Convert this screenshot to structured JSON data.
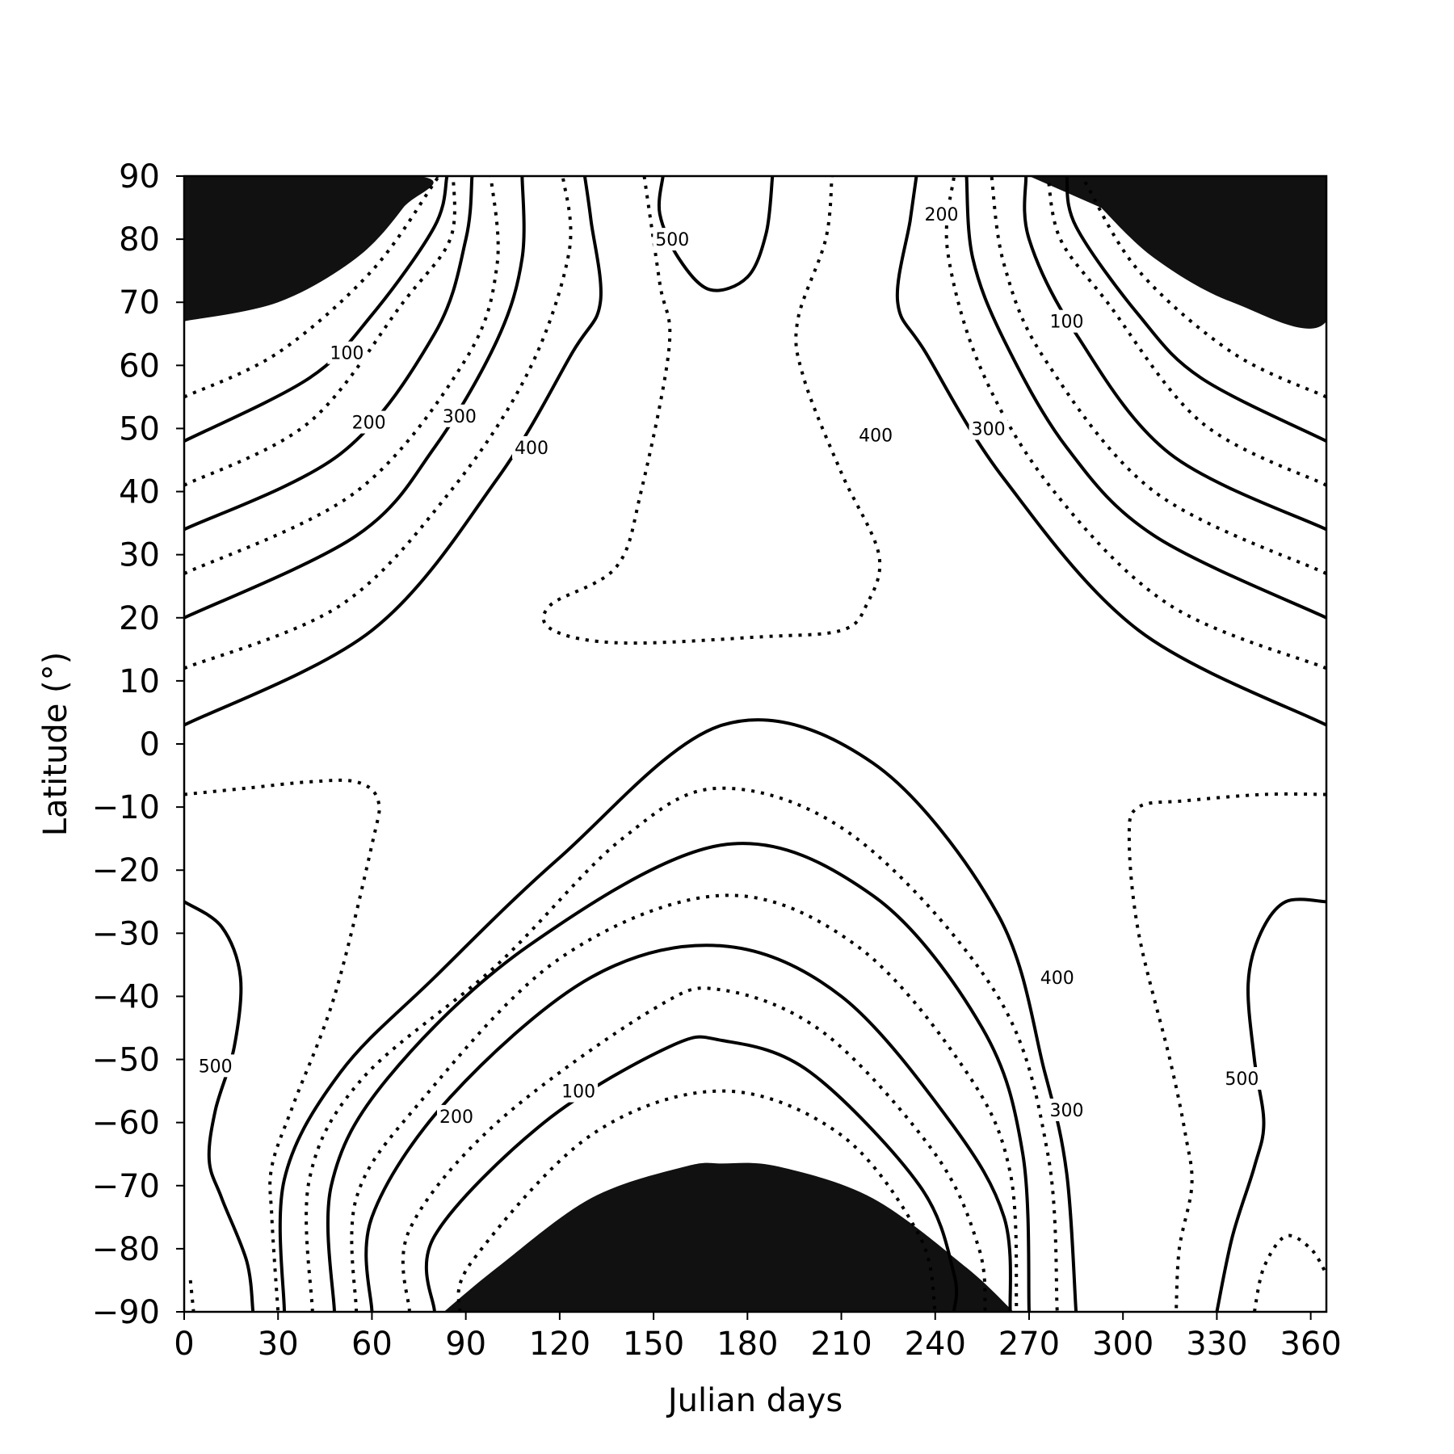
{
  "chart_data": {
    "type": "contour",
    "xlabel": "Julian days",
    "ylabel": "Latitude (°)",
    "xlim": [
      0,
      365
    ],
    "ylim": [
      -90,
      90
    ],
    "x_ticks": [
      "0",
      "30",
      "60",
      "90",
      "120",
      "150",
      "180",
      "210",
      "240",
      "270",
      "300",
      "330",
      "360"
    ],
    "y_ticks": [
      "90",
      "80",
      "70",
      "60",
      "50",
      "40",
      "30",
      "20",
      "10",
      "0",
      "−10",
      "−20",
      "−30",
      "−40",
      "−50",
      "−60",
      "−70",
      "−80",
      "−90"
    ],
    "line_styles": {
      "solid": "multiples of 100",
      "dotted": "intermediate levels (50, 150, 250, 350, 450)"
    },
    "polar_night_fill": "#111111",
    "contour_labels": [
      {
        "text": "100",
        "x": 52,
        "y": 62
      },
      {
        "text": "200",
        "x": 59,
        "y": 51
      },
      {
        "text": "300",
        "x": 88,
        "y": 52
      },
      {
        "text": "400",
        "x": 111,
        "y": 47
      },
      {
        "text": "500",
        "x": 156,
        "y": 80
      },
      {
        "text": "400",
        "x": 221,
        "y": 49
      },
      {
        "text": "300",
        "x": 257,
        "y": 50
      },
      {
        "text": "200",
        "x": 242,
        "y": 84
      },
      {
        "text": "100",
        "x": 282,
        "y": 67
      },
      {
        "text": "500",
        "x": 10,
        "y": -51
      },
      {
        "text": "200",
        "x": 87,
        "y": -59
      },
      {
        "text": "100",
        "x": 126,
        "y": -55
      },
      {
        "text": "400",
        "x": 279,
        "y": -37
      },
      {
        "text": "300",
        "x": 282,
        "y": -58
      },
      {
        "text": "500",
        "x": 338,
        "y": -53
      }
    ],
    "contours": [
      {
        "style": "solid",
        "points": [
          [
            0,
            3
          ],
          [
            60,
            18
          ],
          [
            100,
            42
          ],
          [
            124,
            62
          ],
          [
            133,
            70
          ],
          [
            130,
            83
          ],
          [
            128,
            90
          ]
        ]
      },
      {
        "style": "dotted",
        "points": [
          [
            0,
            12
          ],
          [
            50,
            22
          ],
          [
            85,
            40
          ],
          [
            110,
            59
          ],
          [
            123,
            78
          ],
          [
            121,
            90
          ]
        ]
      },
      {
        "style": "solid",
        "points": [
          [
            0,
            20
          ],
          [
            55,
            33
          ],
          [
            80,
            47
          ],
          [
            100,
            64
          ],
          [
            108,
            77
          ],
          [
            108,
            90
          ]
        ]
      },
      {
        "style": "dotted",
        "points": [
          [
            0,
            27
          ],
          [
            55,
            40
          ],
          [
            90,
            61
          ],
          [
            100,
            76
          ],
          [
            98,
            90
          ]
        ]
      },
      {
        "style": "solid",
        "points": [
          [
            0,
            34
          ],
          [
            50,
            46
          ],
          [
            80,
            65
          ],
          [
            90,
            80
          ],
          [
            92,
            90
          ]
        ]
      },
      {
        "style": "dotted",
        "points": [
          [
            0,
            41
          ],
          [
            40,
            51
          ],
          [
            70,
            70
          ],
          [
            85,
            80
          ],
          [
            86,
            90
          ]
        ]
      },
      {
        "style": "solid",
        "points": [
          [
            0,
            48
          ],
          [
            40,
            58
          ],
          [
            60,
            68
          ],
          [
            80,
            82
          ],
          [
            84,
            90
          ]
        ]
      },
      {
        "style": "dotted",
        "points": [
          [
            0,
            55
          ],
          [
            30,
            62
          ],
          [
            60,
            75
          ],
          [
            80,
            89
          ],
          [
            81,
            90
          ]
        ]
      },
      {
        "style": "solid",
        "points": [
          [
            365,
            3
          ],
          [
            305,
            18
          ],
          [
            262,
            42
          ],
          [
            237,
            62
          ],
          [
            228,
            70
          ],
          [
            232,
            83
          ],
          [
            234,
            90
          ]
        ]
      },
      {
        "style": "dotted",
        "points": [
          [
            365,
            12
          ],
          [
            315,
            22
          ],
          [
            278,
            40
          ],
          [
            255,
            59
          ],
          [
            244,
            78
          ],
          [
            246,
            90
          ]
        ]
      },
      {
        "style": "solid",
        "points": [
          [
            365,
            20
          ],
          [
            310,
            33
          ],
          [
            282,
            47
          ],
          [
            262,
            64
          ],
          [
            252,
            77
          ],
          [
            250,
            90
          ]
        ]
      },
      {
        "style": "dotted",
        "points": [
          [
            365,
            27
          ],
          [
            310,
            40
          ],
          [
            275,
            61
          ],
          [
            262,
            76
          ],
          [
            258,
            90
          ]
        ]
      },
      {
        "style": "solid",
        "points": [
          [
            365,
            34
          ],
          [
            315,
            46
          ],
          [
            285,
            65
          ],
          [
            270,
            80
          ],
          [
            269,
            90
          ]
        ]
      },
      {
        "style": "dotted",
        "points": [
          [
            365,
            41
          ],
          [
            325,
            51
          ],
          [
            295,
            70
          ],
          [
            280,
            80
          ],
          [
            276,
            90
          ]
        ]
      },
      {
        "style": "solid",
        "points": [
          [
            365,
            48
          ],
          [
            325,
            58
          ],
          [
            305,
            68
          ],
          [
            285,
            82
          ],
          [
            282,
            90
          ]
        ]
      },
      {
        "style": "dotted",
        "points": [
          [
            365,
            55
          ],
          [
            335,
            62
          ],
          [
            305,
            75
          ],
          [
            288,
            89
          ],
          [
            287,
            90
          ]
        ]
      },
      {
        "style": "dotted",
        "points": [
          [
            147,
            90
          ],
          [
            152,
            73
          ],
          [
            155,
            63
          ],
          [
            146,
            40
          ],
          [
            138,
            28
          ],
          [
            117,
            22
          ],
          [
            118,
            18
          ],
          [
            140,
            16
          ],
          [
            185,
            17
          ],
          [
            210,
            18
          ],
          [
            218,
            22
          ],
          [
            222,
            30
          ],
          [
            210,
            43
          ],
          [
            198,
            58
          ],
          [
            196,
            67
          ],
          [
            205,
            80
          ],
          [
            207,
            90
          ]
        ]
      },
      {
        "style": "solid",
        "points": [
          [
            153,
            90
          ],
          [
            152,
            84
          ],
          [
            158,
            77
          ],
          [
            168,
            72
          ],
          [
            180,
            74
          ],
          [
            186,
            81
          ],
          [
            188,
            90
          ]
        ]
      },
      {
        "style": "solid",
        "points": [
          [
            32,
            -90
          ],
          [
            32,
            -69
          ],
          [
            50,
            -52
          ],
          [
            80,
            -37
          ],
          [
            120,
            -18
          ],
          [
            172,
            3
          ],
          [
            220,
            -3
          ],
          [
            260,
            -27
          ],
          [
            275,
            -52
          ],
          [
            282,
            -68
          ],
          [
            285,
            -90
          ]
        ]
      },
      {
        "style": "dotted",
        "points": [
          [
            41,
            -90
          ],
          [
            40,
            -69
          ],
          [
            57,
            -53
          ],
          [
            100,
            -35
          ],
          [
            140,
            -15
          ],
          [
            172,
            -7
          ],
          [
            215,
            -15
          ],
          [
            260,
            -40
          ],
          [
            276,
            -65
          ],
          [
            279,
            -90
          ]
        ]
      },
      {
        "style": "solid",
        "points": [
          [
            48,
            -90
          ],
          [
            47,
            -70
          ],
          [
            65,
            -53
          ],
          [
            110,
            -32
          ],
          [
            172,
            -16
          ],
          [
            220,
            -24
          ],
          [
            255,
            -45
          ],
          [
            268,
            -65
          ],
          [
            270,
            -90
          ]
        ]
      },
      {
        "style": "dotted",
        "points": [
          [
            55,
            -90
          ],
          [
            55,
            -72
          ],
          [
            75,
            -57
          ],
          [
            120,
            -34
          ],
          [
            172,
            -24
          ],
          [
            215,
            -32
          ],
          [
            250,
            -52
          ],
          [
            264,
            -68
          ],
          [
            266,
            -90
          ]
        ]
      },
      {
        "style": "solid",
        "points": [
          [
            60,
            -90
          ],
          [
            60,
            -75
          ],
          [
            85,
            -56
          ],
          [
            130,
            -37
          ],
          [
            172,
            -32
          ],
          [
            210,
            -40
          ],
          [
            245,
            -60
          ],
          [
            262,
            -75
          ],
          [
            264,
            -90
          ]
        ]
      },
      {
        "style": "dotted",
        "points": [
          [
            72,
            -90
          ],
          [
            72,
            -77
          ],
          [
            100,
            -60
          ],
          [
            150,
            -42
          ],
          [
            172,
            -39
          ],
          [
            205,
            -46
          ],
          [
            240,
            -65
          ],
          [
            254,
            -80
          ],
          [
            256,
            -90
          ]
        ]
      },
      {
        "style": "solid",
        "points": [
          [
            80,
            -90
          ],
          [
            80,
            -78
          ],
          [
            115,
            -60
          ],
          [
            155,
            -48
          ],
          [
            172,
            -47
          ],
          [
            200,
            -52
          ],
          [
            235,
            -70
          ],
          [
            246,
            -84
          ],
          [
            246,
            -90
          ]
        ]
      },
      {
        "style": "dotted",
        "points": [
          [
            88,
            -90
          ],
          [
            92,
            -82
          ],
          [
            130,
            -62
          ],
          [
            172,
            -55
          ],
          [
            210,
            -62
          ],
          [
            235,
            -78
          ],
          [
            240,
            -90
          ]
        ]
      },
      {
        "style": "solid",
        "points": [
          [
            0,
            -25
          ],
          [
            12,
            -29
          ],
          [
            18,
            -37
          ],
          [
            16,
            -48
          ],
          [
            10,
            -58
          ],
          [
            8,
            -66
          ],
          [
            12,
            -72
          ],
          [
            20,
            -82
          ],
          [
            22,
            -90
          ]
        ]
      },
      {
        "style": "dotted",
        "points": [
          [
            0,
            -8
          ],
          [
            20,
            -7
          ],
          [
            40,
            -6
          ],
          [
            55,
            -6
          ],
          [
            62,
            -9
          ],
          [
            60,
            -16
          ],
          [
            48,
            -40
          ],
          [
            35,
            -57
          ],
          [
            28,
            -67
          ],
          [
            28,
            -75
          ],
          [
            30,
            -90
          ]
        ]
      },
      {
        "style": "dotted",
        "points": [
          [
            2,
            -85
          ],
          [
            3,
            -90
          ]
        ]
      },
      {
        "style": "solid",
        "points": [
          [
            365,
            -25
          ],
          [
            352,
            -25
          ],
          [
            344,
            -30
          ],
          [
            340,
            -38
          ],
          [
            342,
            -50
          ],
          [
            345,
            -60
          ],
          [
            342,
            -67
          ],
          [
            335,
            -78
          ],
          [
            330,
            -90
          ]
        ]
      },
      {
        "style": "dotted",
        "points": [
          [
            365,
            -8
          ],
          [
            345,
            -8
          ],
          [
            320,
            -9
          ],
          [
            305,
            -10
          ],
          [
            302,
            -15
          ],
          [
            305,
            -30
          ],
          [
            315,
            -50
          ],
          [
            320,
            -62
          ],
          [
            322,
            -70
          ],
          [
            318,
            -80
          ],
          [
            317,
            -90
          ]
        ]
      },
      {
        "style": "dotted",
        "points": [
          [
            342,
            -90
          ],
          [
            345,
            -83
          ],
          [
            352,
            -78
          ],
          [
            360,
            -80
          ],
          [
            365,
            -84
          ]
        ]
      }
    ],
    "polar_night_regions": [
      {
        "name": "north-polar-night-left",
        "points": [
          [
            0,
            90
          ],
          [
            75,
            90
          ],
          [
            70,
            85
          ],
          [
            55,
            77
          ],
          [
            30,
            70
          ],
          [
            0,
            67
          ]
        ]
      },
      {
        "name": "north-polar-night-right",
        "points": [
          [
            270,
            90
          ],
          [
            365,
            90
          ],
          [
            365,
            67
          ],
          [
            335,
            70
          ],
          [
            310,
            77
          ],
          [
            293,
            85
          ]
        ]
      },
      {
        "name": "south-polar-night",
        "points": [
          [
            83,
            -90
          ],
          [
            100,
            -83
          ],
          [
            130,
            -72
          ],
          [
            160,
            -67
          ],
          [
            172,
            -66.5
          ],
          [
            190,
            -67
          ],
          [
            220,
            -72
          ],
          [
            250,
            -83
          ],
          [
            265,
            -90
          ]
        ]
      }
    ]
  }
}
